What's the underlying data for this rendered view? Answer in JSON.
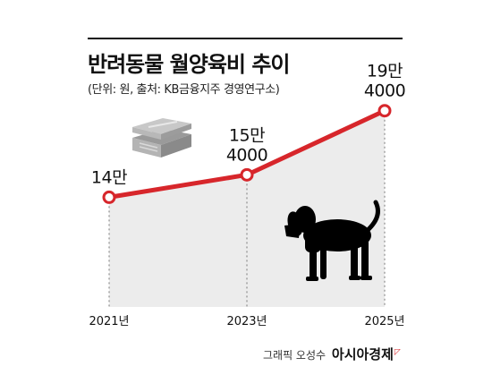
{
  "title": "반려동물 월양육비 추이",
  "subtitle": "(단위: 원, 출처: KB금융지주 경영연구소)",
  "credit": {
    "byline": "그래픽 오성수",
    "brand": "아시아경제"
  },
  "colors": {
    "line": "#d7262b",
    "area": "#ececec",
    "marker_fill": "#ffffff",
    "text": "#111111"
  },
  "icons": [
    "money-stack-icon",
    "dog-silhouette-icon"
  ],
  "chart_data": {
    "type": "line",
    "title": "반려동물 월양육비 추이",
    "unit": "원",
    "categories": [
      "2021년",
      "2023년",
      "2025년"
    ],
    "values": [
      140000,
      154000,
      194000
    ],
    "data_labels": [
      [
        "14만"
      ],
      [
        "15만",
        "4000"
      ],
      [
        "19만",
        "4000"
      ]
    ],
    "area_fill": true,
    "grid": false,
    "legend": "none"
  }
}
